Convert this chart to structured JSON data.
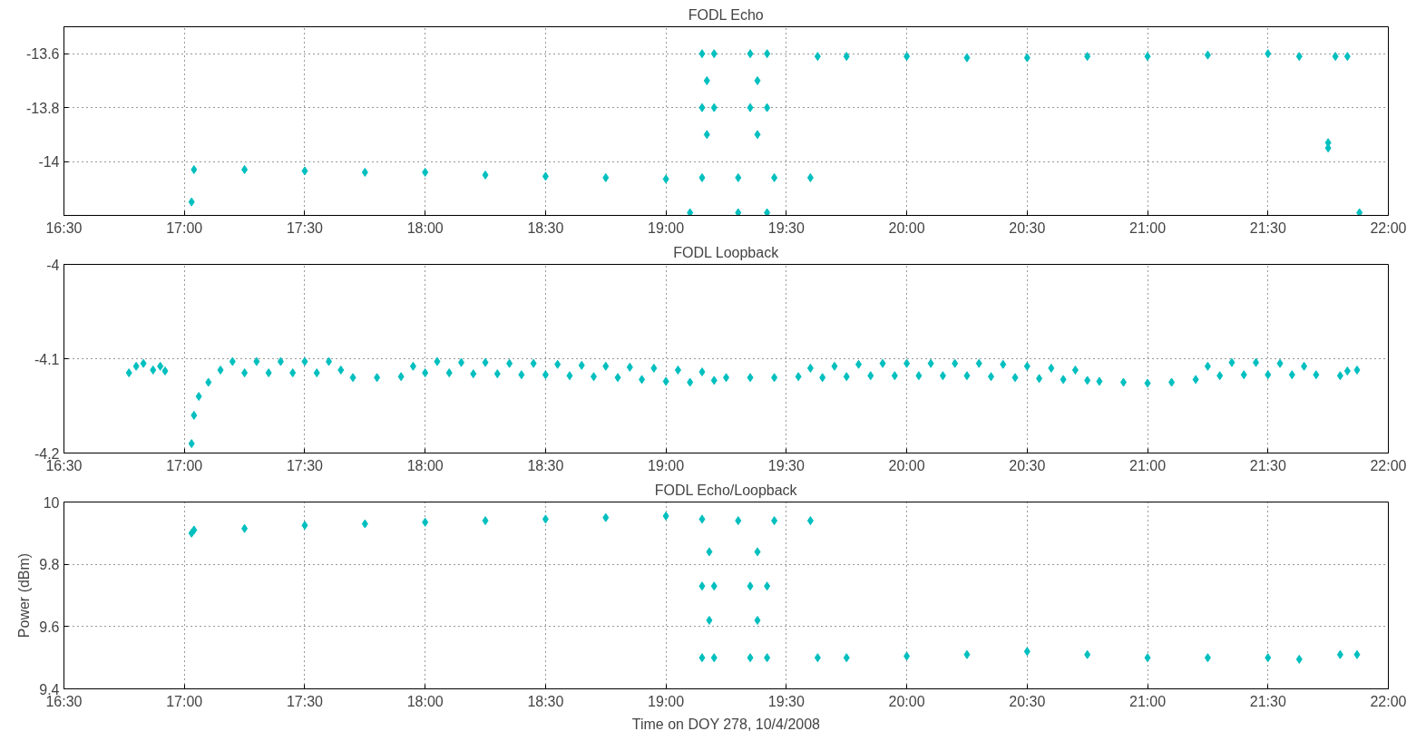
{
  "chart_data": [
    {
      "type": "scatter",
      "title": "FODL Echo",
      "marker": "diamond",
      "grid": true,
      "xlim": [
        16.5,
        22
      ],
      "ylim": [
        -14.2,
        -13.5
      ],
      "xticks": [
        {
          "value": 16.5,
          "label": "16:30"
        },
        {
          "value": 17,
          "label": "17:00"
        },
        {
          "value": 17.5,
          "label": "17:30"
        },
        {
          "value": 18,
          "label": "18:00"
        },
        {
          "value": 18.5,
          "label": "18:30"
        },
        {
          "value": 19,
          "label": "19:00"
        },
        {
          "value": 19.5,
          "label": "19:30"
        },
        {
          "value": 20,
          "label": "20:00"
        },
        {
          "value": 20.5,
          "label": "20:30"
        },
        {
          "value": 21,
          "label": "21:00"
        },
        {
          "value": 21.5,
          "label": "21:30"
        },
        {
          "value": 22,
          "label": "22:00"
        }
      ],
      "yticks": [
        -14,
        -13.8,
        -13.6
      ],
      "series": [
        {
          "color": "#00bfbf",
          "x": [
            17.03,
            17.04,
            17.25,
            17.5,
            17.75,
            18.0,
            18.25,
            18.5,
            18.75,
            19.0,
            19.15,
            19.3,
            19.45,
            19.6,
            19.15,
            19.2,
            19.15,
            19.2,
            19.17,
            19.17,
            19.35,
            19.42,
            19.35,
            19.42,
            19.38,
            19.38,
            19.1,
            19.3,
            19.42,
            19.63,
            19.75,
            20.0,
            20.25,
            20.5,
            20.75,
            21.0,
            21.25,
            21.5,
            21.63,
            21.78,
            21.83,
            21.75,
            21.75,
            21.88
          ],
          "values": [
            -14.15,
            -14.03,
            -14.03,
            -14.035,
            -14.04,
            -14.04,
            -14.05,
            -14.055,
            -14.06,
            -14.065,
            -14.06,
            -14.06,
            -14.06,
            -14.06,
            -13.6,
            -13.6,
            -13.8,
            -13.8,
            -13.7,
            -13.9,
            -13.6,
            -13.6,
            -13.8,
            -13.8,
            -13.7,
            -13.9,
            -14.19,
            -14.19,
            -14.19,
            -13.61,
            -13.61,
            -13.61,
            -13.615,
            -13.615,
            -13.61,
            -13.61,
            -13.605,
            -13.6,
            -13.61,
            -13.61,
            -13.61,
            -13.93,
            -13.95,
            -14.19
          ]
        }
      ]
    },
    {
      "type": "scatter",
      "title": "FODL Loopback",
      "marker": "diamond",
      "grid": true,
      "xlim": [
        16.5,
        22
      ],
      "ylim": [
        -4.2,
        -4
      ],
      "xticks": [
        {
          "value": 16.5,
          "label": "16:30"
        },
        {
          "value": 17,
          "label": "17:00"
        },
        {
          "value": 17.5,
          "label": "17:30"
        },
        {
          "value": 18,
          "label": "18:00"
        },
        {
          "value": 18.5,
          "label": "18:30"
        },
        {
          "value": 19,
          "label": "19:00"
        },
        {
          "value": 19.5,
          "label": "19:30"
        },
        {
          "value": 20,
          "label": "20:00"
        },
        {
          "value": 20.5,
          "label": "20:30"
        },
        {
          "value": 21,
          "label": "21:00"
        },
        {
          "value": 21.5,
          "label": "21:30"
        },
        {
          "value": 22,
          "label": "22:00"
        }
      ],
      "yticks": [
        -4.2,
        -4.1,
        -4
      ],
      "series": [
        {
          "color": "#00bfbf",
          "x": [
            16.77,
            16.8,
            16.83,
            16.87,
            16.9,
            16.92,
            17.03,
            17.04,
            17.06,
            17.1,
            17.15,
            17.2,
            17.25,
            17.3,
            17.35,
            17.4,
            17.45,
            17.5,
            17.55,
            17.6,
            17.65,
            17.7,
            17.8,
            17.9,
            17.95,
            18.0,
            18.05,
            18.1,
            18.15,
            18.2,
            18.25,
            18.3,
            18.35,
            18.4,
            18.45,
            18.5,
            18.55,
            18.6,
            18.65,
            18.7,
            18.75,
            18.8,
            18.85,
            18.9,
            18.95,
            19.0,
            19.05,
            19.1,
            19.15,
            19.2,
            19.25,
            19.35,
            19.45,
            19.55,
            19.6,
            19.65,
            19.7,
            19.75,
            19.8,
            19.85,
            19.9,
            19.95,
            20.0,
            20.05,
            20.1,
            20.15,
            20.2,
            20.25,
            20.3,
            20.35,
            20.4,
            20.45,
            20.5,
            20.55,
            20.6,
            20.65,
            20.7,
            20.75,
            20.8,
            20.9,
            21.0,
            21.1,
            21.2,
            21.25,
            21.3,
            21.35,
            21.4,
            21.45,
            21.5,
            21.55,
            21.6,
            21.65,
            21.7,
            21.8,
            21.83,
            21.87
          ],
          "values": [
            -4.115,
            -4.108,
            -4.105,
            -4.112,
            -4.108,
            -4.113,
            -4.19,
            -4.16,
            -4.14,
            -4.125,
            -4.112,
            -4.103,
            -4.115,
            -4.103,
            -4.115,
            -4.103,
            -4.115,
            -4.103,
            -4.115,
            -4.103,
            -4.112,
            -4.12,
            -4.12,
            -4.119,
            -4.108,
            -4.115,
            -4.103,
            -4.115,
            -4.104,
            -4.116,
            -4.104,
            -4.116,
            -4.105,
            -4.117,
            -4.105,
            -4.117,
            -4.106,
            -4.118,
            -4.107,
            -4.119,
            -4.108,
            -4.12,
            -4.109,
            -4.122,
            -4.11,
            -4.124,
            -4.112,
            -4.125,
            -4.114,
            -4.123,
            -4.12,
            -4.12,
            -4.12,
            -4.119,
            -4.11,
            -4.12,
            -4.108,
            -4.119,
            -4.106,
            -4.118,
            -4.105,
            -4.118,
            -4.105,
            -4.118,
            -4.105,
            -4.118,
            -4.105,
            -4.118,
            -4.105,
            -4.119,
            -4.106,
            -4.12,
            -4.108,
            -4.121,
            -4.11,
            -4.122,
            -4.112,
            -4.123,
            -4.124,
            -4.125,
            -4.126,
            -4.125,
            -4.122,
            -4.108,
            -4.118,
            -4.104,
            -4.117,
            -4.104,
            -4.117,
            -4.105,
            -4.117,
            -4.108,
            -4.117,
            -4.118,
            -4.113,
            -4.112
          ]
        }
      ]
    },
    {
      "type": "scatter",
      "title": "FODL Echo/Loopback",
      "xlabel": "Time on DOY 278, 10/4/2008",
      "ylabel": "Power (dBm)",
      "marker": "diamond",
      "grid": true,
      "xlim": [
        16.5,
        22
      ],
      "ylim": [
        9.4,
        10
      ],
      "xticks": [
        {
          "value": 16.5,
          "label": "16:30"
        },
        {
          "value": 17,
          "label": "17:00"
        },
        {
          "value": 17.5,
          "label": "17:30"
        },
        {
          "value": 18,
          "label": "18:00"
        },
        {
          "value": 18.5,
          "label": "18:30"
        },
        {
          "value": 19,
          "label": "19:00"
        },
        {
          "value": 19.5,
          "label": "19:30"
        },
        {
          "value": 20,
          "label": "20:00"
        },
        {
          "value": 20.5,
          "label": "20:30"
        },
        {
          "value": 21,
          "label": "21:00"
        },
        {
          "value": 21.5,
          "label": "21:30"
        },
        {
          "value": 22,
          "label": "22:00"
        }
      ],
      "yticks": [
        9.4,
        9.6,
        9.8,
        10
      ],
      "series": [
        {
          "color": "#00bfbf",
          "x": [
            17.03,
            17.04,
            17.25,
            17.5,
            17.75,
            18.0,
            18.25,
            18.5,
            18.75,
            19.0,
            19.15,
            19.3,
            19.45,
            19.6,
            19.15,
            19.2,
            19.15,
            19.2,
            19.18,
            19.18,
            19.35,
            19.42,
            19.35,
            19.42,
            19.38,
            19.38,
            19.63,
            19.75,
            20.0,
            20.25,
            20.5,
            20.75,
            21.0,
            21.25,
            21.5,
            21.63,
            21.8,
            21.87
          ],
          "values": [
            9.9,
            9.91,
            9.915,
            9.925,
            9.93,
            9.935,
            9.94,
            9.945,
            9.95,
            9.955,
            9.945,
            9.94,
            9.94,
            9.94,
            9.73,
            9.73,
            9.5,
            9.5,
            9.62,
            9.84,
            9.73,
            9.73,
            9.5,
            9.5,
            9.62,
            9.84,
            9.5,
            9.5,
            9.505,
            9.51,
            9.52,
            9.51,
            9.5,
            9.5,
            9.5,
            9.495,
            9.51,
            9.51
          ]
        }
      ]
    }
  ]
}
